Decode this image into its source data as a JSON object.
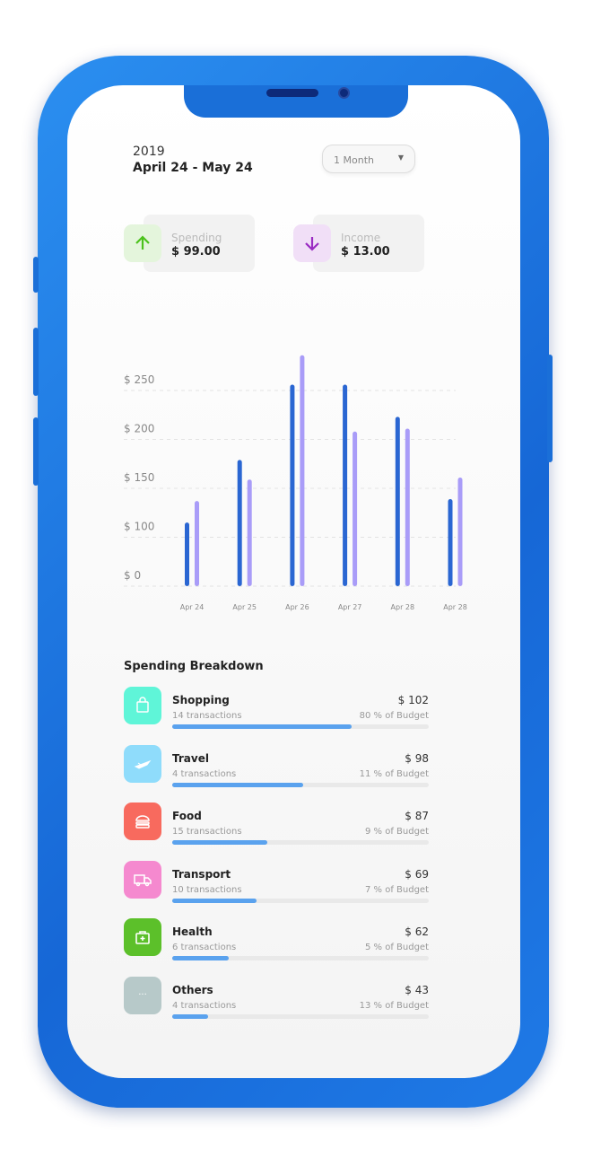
{
  "header": {
    "year": "2019",
    "range": "April 24 - May 24",
    "period_select": "1 Month"
  },
  "summary": [
    {
      "label": "Spending",
      "value": "$ 99.00",
      "icon": "arrow-up-icon",
      "icon_color": "#4cc21c",
      "bg": "#e4f5dc"
    },
    {
      "label": "Income",
      "value": "$ 13.00",
      "icon": "arrow-down-icon",
      "icon_color": "#9a2bc2",
      "bg": "#f1dff7"
    }
  ],
  "chart_data": {
    "type": "bar",
    "categories": [
      "Apr 24",
      "Apr 25",
      "Apr 26",
      "Apr 27",
      "Apr 28",
      "Apr 28"
    ],
    "y_ticks": [
      "$ 0",
      "$ 100",
      "$ 150",
      "$ 200",
      "$ 250"
    ],
    "y_tick_values": [
      0,
      100,
      150,
      200,
      250
    ],
    "grid": true,
    "series": [
      {
        "color": "#2a66d2",
        "values": [
          115,
          179,
          256,
          256,
          223,
          139
        ]
      },
      {
        "color": "#a99cf8",
        "values": [
          137,
          159,
          286,
          208,
          211,
          161
        ]
      }
    ]
  },
  "breakdown": {
    "title": "Spending Breakdown",
    "items": [
      {
        "name": "Shopping",
        "transactions": "14 transactions",
        "amount": "$ 102",
        "budget": "80 % of Budget",
        "progress": 0.7,
        "color": "#5ff5d8",
        "icon": "shopping-bag-icon"
      },
      {
        "name": "Travel",
        "transactions": "4 transactions",
        "amount": "$ 98",
        "budget": "11 % of Budget",
        "progress": 0.51,
        "color": "#8fdcfb",
        "icon": "airplane-icon"
      },
      {
        "name": "Food",
        "transactions": "15 transactions",
        "amount": "$ 87",
        "budget": "9 % of Budget",
        "progress": 0.37,
        "color": "#f86a5e",
        "icon": "burger-icon"
      },
      {
        "name": "Transport",
        "transactions": "10 transactions",
        "amount": "$ 69",
        "budget": "7 % of Budget",
        "progress": 0.33,
        "color": "#f589cf",
        "icon": "truck-icon"
      },
      {
        "name": "Health",
        "transactions": "6 transactions",
        "amount": "$ 62",
        "budget": "5 % of Budget",
        "progress": 0.22,
        "color": "#5cc02a",
        "icon": "first-aid-kit-icon"
      },
      {
        "name": "Others",
        "transactions": "4 transactions",
        "amount": "$ 43",
        "budget": "13 % of Budget",
        "progress": 0.14,
        "color": "#b7c9c9",
        "icon": "more-icon"
      }
    ]
  }
}
